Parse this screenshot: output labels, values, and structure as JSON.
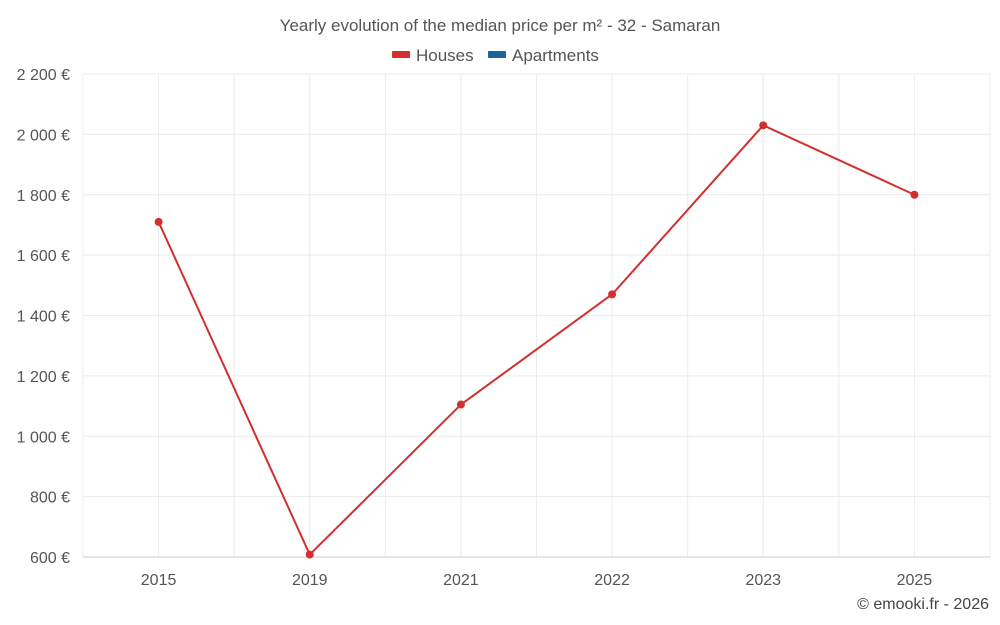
{
  "chart_data": {
    "type": "line",
    "title": "Yearly evolution of the median price per m² - 32 - Samaran",
    "categories": [
      "2015",
      "2019",
      "2021",
      "2022",
      "2023",
      "2025"
    ],
    "series": [
      {
        "name": "Houses",
        "color": "#d32f2f",
        "values": [
          1710,
          608,
          1105,
          1470,
          2030,
          1800
        ]
      },
      {
        "name": "Apartments",
        "color": "#1a6496",
        "values": [
          null,
          null,
          null,
          null,
          null,
          null
        ]
      }
    ],
    "ylim": [
      600,
      2200
    ],
    "yticks": [
      600,
      800,
      1000,
      1200,
      1400,
      1600,
      1800,
      2000,
      2200
    ],
    "ytick_labels": [
      "600 €",
      "800 €",
      "1 000 €",
      "1 200 €",
      "1 400 €",
      "1 600 €",
      "1 800 €",
      "2 000 €",
      "2 200 €"
    ],
    "xlabel": "",
    "ylabel": "",
    "grid": true,
    "legend_position": "top-center"
  },
  "credit": "© emooki.fr - 2026"
}
